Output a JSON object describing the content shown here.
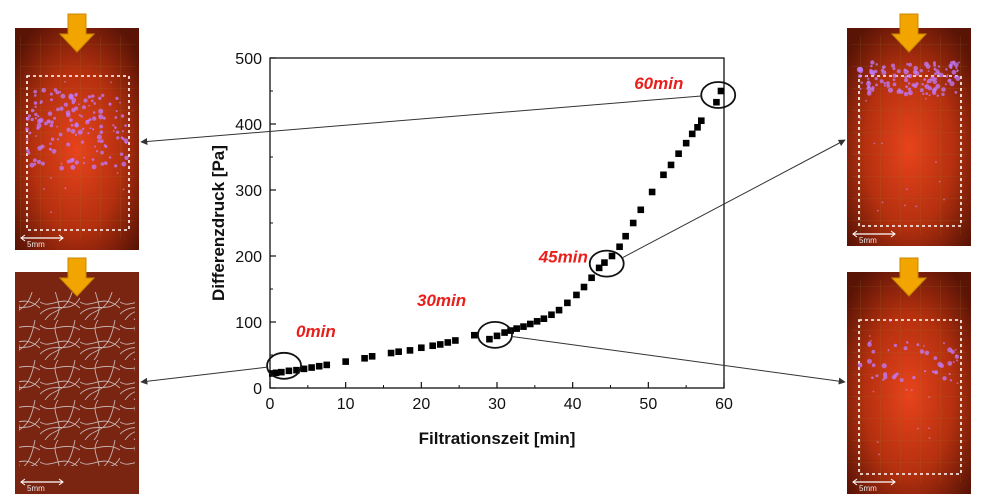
{
  "chart_data": {
    "type": "scatter",
    "title": "",
    "xlabel": "Filtrationszeit [min]",
    "ylabel": "Differenzdruck [Pa]",
    "xlim": [
      0,
      60
    ],
    "ylim": [
      0,
      500
    ],
    "xticks": [
      0,
      10,
      20,
      30,
      40,
      50,
      60
    ],
    "yticks": [
      0,
      100,
      200,
      300,
      400,
      500
    ],
    "grid": false,
    "marker": "square",
    "marker_color": "#000000",
    "series": [
      {
        "x": [
          0.3,
          0.8,
          1.5,
          2.5,
          3.5,
          4.5,
          5.5,
          6.5,
          7.5,
          10.0,
          12.5,
          13.5,
          16.0,
          17.0,
          18.5,
          20.0,
          21.5,
          22.5,
          23.5,
          24.5,
          27.0,
          29.0,
          30.0,
          31.0,
          31.8,
          32.6,
          33.5,
          34.4,
          35.3,
          36.2,
          37.2,
          38.2,
          39.3,
          40.5,
          41.5,
          42.5,
          43.5,
          44.2,
          45.2,
          46.2,
          47.0,
          48.0,
          49.0,
          50.5,
          52.0,
          53.0,
          54.0,
          55.0,
          55.8,
          56.5,
          57.0,
          59.0,
          59.6
        ],
        "y": [
          22,
          23,
          24,
          26,
          27,
          29,
          31,
          33,
          35,
          40,
          45,
          48,
          53,
          55,
          57,
          61,
          64,
          66,
          69,
          72,
          80,
          74,
          79,
          84,
          87,
          90,
          93,
          97,
          101,
          105,
          111,
          118,
          129,
          141,
          153,
          167,
          182,
          190,
          200,
          214,
          230,
          250,
          270,
          297,
          323,
          338,
          355,
          371,
          385,
          395,
          405,
          433,
          450
        ]
      }
    ],
    "annotations": [
      {
        "text": "0min",
        "x": 0.8,
        "y": 23
      },
      {
        "text": "30min",
        "x": 30.0,
        "y": 79
      },
      {
        "text": "45min",
        "x": 44.5,
        "y": 190
      },
      {
        "text": "60min",
        "x": 59.5,
        "y": 450
      }
    ]
  },
  "thumbnails": [
    {
      "label": "5mm",
      "time": "60min"
    },
    {
      "label": "5mm",
      "time": "0min"
    },
    {
      "label": "5mm",
      "time": "45min"
    },
    {
      "label": "5mm",
      "time": "30min"
    }
  ],
  "colors": {
    "annotation": "#e8201c",
    "arrow": "#f2a400",
    "particles": "#c27bff",
    "panel_bg": "#8a200a"
  }
}
